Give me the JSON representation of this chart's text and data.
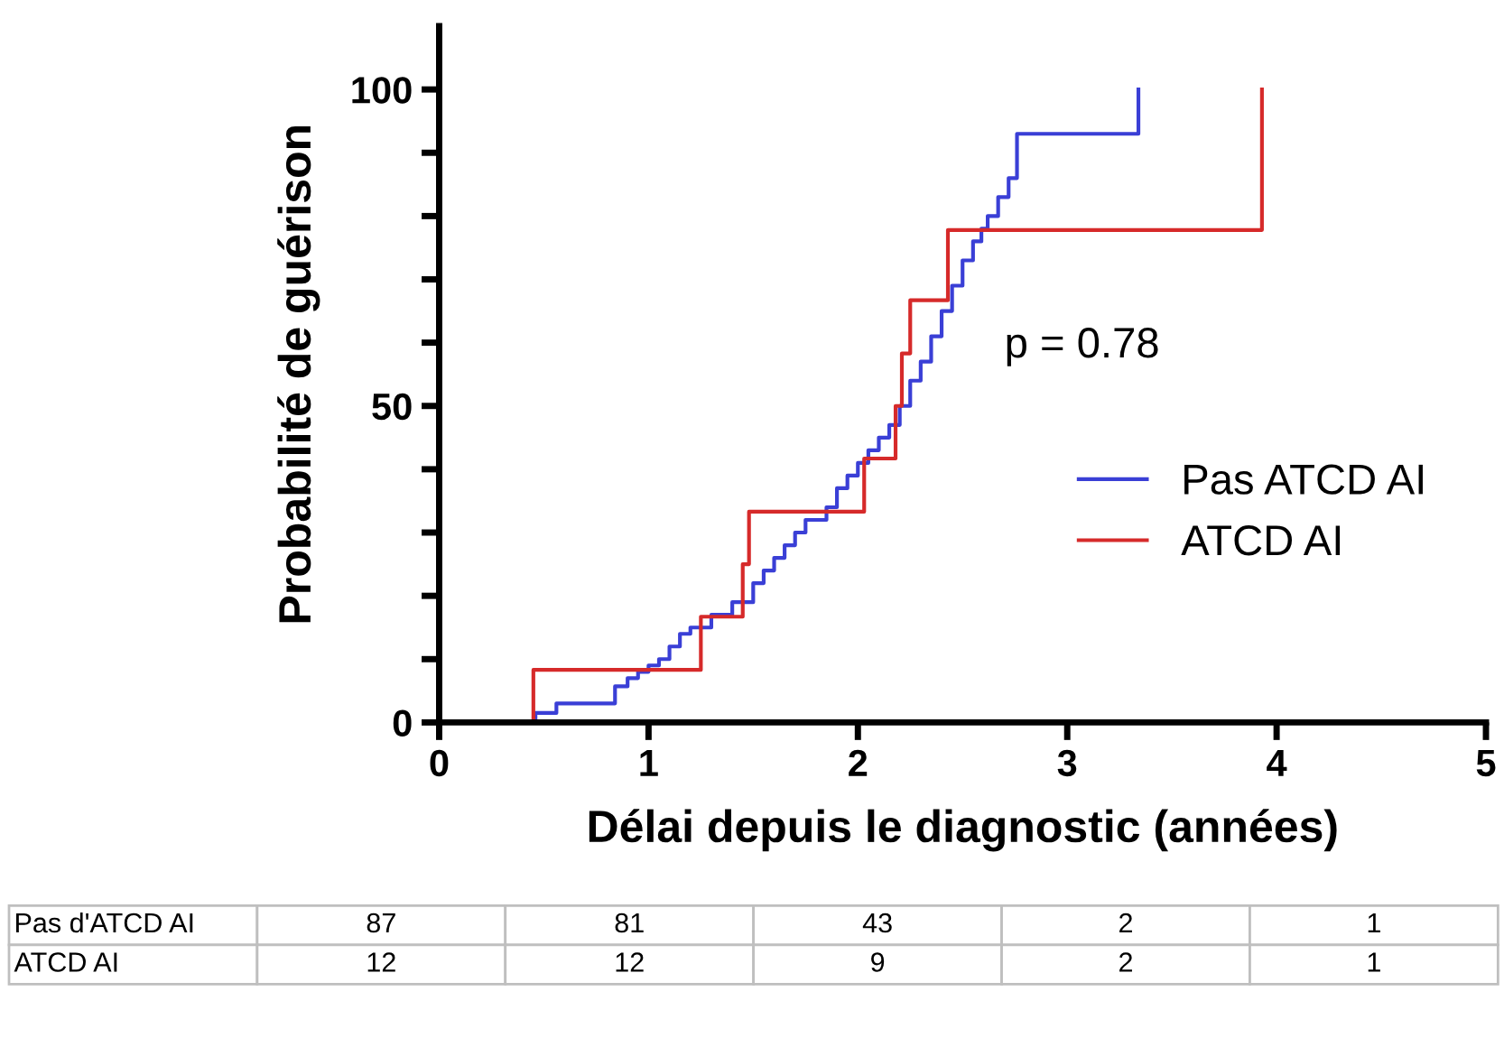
{
  "chart_data": {
    "type": "step",
    "xlabel": "Délai depuis le diagnostic (années)",
    "ylabel": "Probabilité de guérison",
    "xlim": [
      0,
      5
    ],
    "xticks": [
      0,
      1,
      2,
      3,
      4,
      5
    ],
    "ylim": [
      0,
      110
    ],
    "yticks": [
      0,
      {
        "value": 10,
        "label": null
      },
      {
        "value": 20,
        "label": null
      },
      {
        "value": 30,
        "label": null
      },
      {
        "value": 40,
        "label": null
      },
      50,
      {
        "value": 60,
        "label": null
      },
      {
        "value": 70,
        "label": null
      },
      {
        "value": 80,
        "label": null
      },
      {
        "value": 90,
        "label": null
      },
      100
    ],
    "grid": false,
    "legend": "right",
    "series": [
      {
        "name": "Pas ATCD AI",
        "color": "#3a3fd6",
        "x": [
          0,
          0.46,
          0.56,
          0.84,
          0.9,
          0.95,
          1.0,
          1.05,
          1.1,
          1.15,
          1.2,
          1.3,
          1.4,
          1.5,
          1.55,
          1.6,
          1.65,
          1.7,
          1.75,
          1.85,
          1.9,
          1.95,
          2.0,
          2.05,
          2.1,
          2.15,
          2.2,
          2.25,
          2.3,
          2.35,
          2.4,
          2.45,
          2.5,
          2.55,
          2.59,
          2.62,
          2.67,
          2.72,
          2.76,
          3.34
        ],
        "values": [
          0,
          1.5,
          3,
          5.7,
          7,
          8,
          9,
          10,
          12,
          14,
          15,
          17,
          19,
          22,
          24,
          26,
          28,
          30,
          32,
          34,
          37,
          39,
          41,
          43,
          45,
          47,
          50,
          54,
          57,
          61,
          65,
          69,
          73,
          76,
          78,
          80,
          83,
          86,
          93,
          100
        ]
      },
      {
        "name": "ATCD AI",
        "color": "#d62a2a",
        "x": [
          0,
          0.45,
          1.25,
          1.45,
          1.48,
          2.03,
          2.18,
          2.21,
          2.25,
          2.43,
          3.93
        ],
        "values": [
          0,
          8.3,
          16.7,
          25,
          33.3,
          41.7,
          50,
          58.3,
          66.7,
          77.8,
          100
        ]
      }
    ],
    "annotations": [
      "p = 0.78",
      "Pas d'ATCD AI",
      "87",
      "81",
      "43",
      "2",
      "1",
      "ATCD AI",
      "12",
      "12",
      "9",
      "2",
      "1"
    ]
  }
}
